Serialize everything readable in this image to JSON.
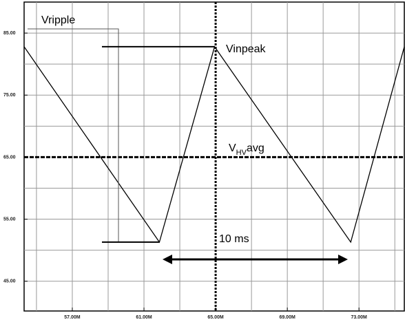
{
  "chart_data": {
    "type": "line",
    "x": [
      54.31,
      61.86,
      64.94,
      72.54,
      75.53
    ],
    "series": [
      {
        "color": "#000000",
        "values": [
          82.8,
          51.3,
          82.8,
          51.3,
          82.8
        ]
      }
    ],
    "xlim": [
      54.31,
      75.53
    ],
    "xticks": [
      {
        "value": 57,
        "label": "57.00M"
      },
      {
        "value": 61,
        "label": "61.00M"
      },
      {
        "value": 65,
        "label": "65.00M"
      },
      {
        "value": 69,
        "label": "69.00M"
      },
      {
        "value": 73,
        "label": "73.00M"
      }
    ],
    "ylim": [
      40.2,
      90
    ],
    "yticks": [
      {
        "value": 45,
        "label": "45.00"
      },
      {
        "value": 55,
        "label": "55.00"
      },
      {
        "value": 65,
        "label": "65.00"
      },
      {
        "value": 75,
        "label": "75.00"
      },
      {
        "value": 85,
        "label": "85.00"
      }
    ],
    "xgrid": [
      55,
      57,
      59,
      61,
      63,
      67,
      69,
      71,
      73,
      75
    ],
    "ygrid": [
      45,
      50,
      55,
      60,
      70,
      75,
      80,
      85
    ],
    "grid": true,
    "hline": 65,
    "vline": 65,
    "annotations": {
      "ripple": "Vripple",
      "peak": "Vinpeak",
      "avg_v": "V",
      "avg_sub": "HV",
      "avg_rest": "avg",
      "period": "10 ms"
    }
  }
}
